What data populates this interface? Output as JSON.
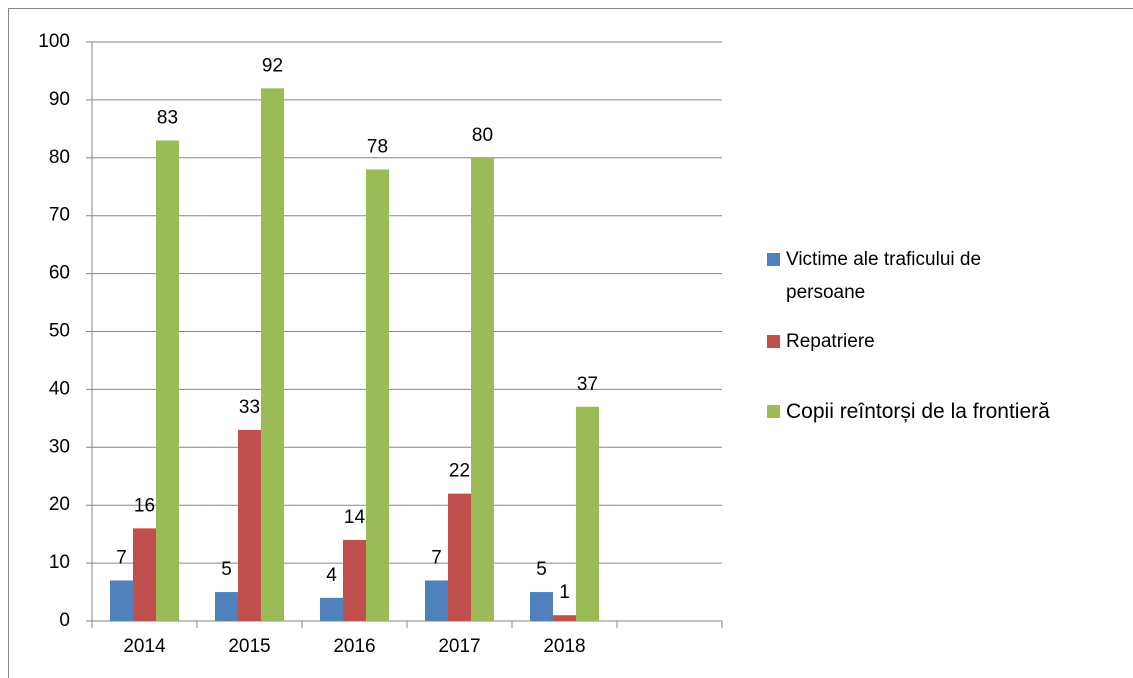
{
  "chart_data": {
    "type": "bar",
    "categories": [
      "2014",
      "2015",
      "2016",
      "2017",
      "2018",
      null
    ],
    "series": [
      {
        "name": "Victime ale traficului de persoane",
        "color": "#4f81bd",
        "values": [
          7,
          5,
          4,
          7,
          5,
          null
        ]
      },
      {
        "name": "Repatriere",
        "color": "#c0504d",
        "values": [
          16,
          33,
          14,
          22,
          1,
          null
        ]
      },
      {
        "name": "Copii reîntorși de la frontieră",
        "color": "#9bbb59",
        "values": [
          83,
          92,
          78,
          80,
          37,
          null
        ]
      }
    ],
    "ylim": [
      0,
      100
    ],
    "yticks": [
      0,
      10,
      20,
      30,
      40,
      50,
      60,
      70,
      80,
      90,
      100
    ],
    "grid": true,
    "legend": "right"
  }
}
